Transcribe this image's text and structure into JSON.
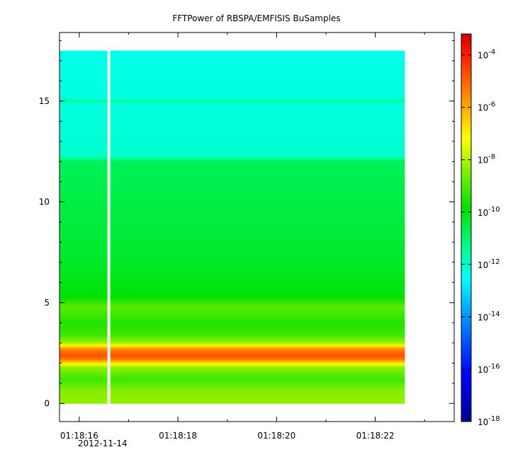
{
  "chart_data": {
    "type": "heatmap",
    "title": "FFTPower of RBSPA/EMFISIS  BuSamples",
    "xlabel": "",
    "ylabel": "",
    "x_ticks": [
      {
        "value": 16,
        "label": "01:18:16"
      },
      {
        "value": 18,
        "label": "01:18:18"
      },
      {
        "value": 20,
        "label": "01:18:20"
      },
      {
        "value": 22,
        "label": "01:18:22"
      }
    ],
    "x_date_label": "2012-11-14",
    "xlim": [
      15.6,
      23.6
    ],
    "data_x_range": [
      15.6,
      22.6
    ],
    "gap_x": 16.6,
    "y_ticks": [
      0,
      5,
      10,
      15
    ],
    "ylim": [
      -0.9,
      18.4
    ],
    "data_y_range": [
      0,
      17.5
    ],
    "colorbar": {
      "scale": "log",
      "range_exp": [
        -18,
        -3.2
      ],
      "ticks": [
        {
          "exp": -4,
          "base": "10",
          "sup": "-4"
        },
        {
          "exp": -6,
          "base": "10",
          "sup": "-6"
        },
        {
          "exp": -8,
          "base": "10",
          "sup": "-8"
        },
        {
          "exp": -10,
          "base": "10",
          "sup": "-10"
        },
        {
          "exp": -12,
          "base": "10",
          "sup": "-12"
        },
        {
          "exp": -14,
          "base": "10",
          "sup": "-14"
        },
        {
          "exp": -16,
          "base": "10",
          "sup": "-16"
        },
        {
          "exp": -18,
          "base": "10",
          "sup": "-18"
        }
      ]
    },
    "power_profile": [
      {
        "f": 0.0,
        "log_power": -8.3
      },
      {
        "f": 0.6,
        "log_power": -8.4
      },
      {
        "f": 1.2,
        "log_power": -9.2
      },
      {
        "f": 1.8,
        "log_power": -8.3
      },
      {
        "f": 2.2,
        "log_power": -5.2
      },
      {
        "f": 2.4,
        "log_power": -4.7
      },
      {
        "f": 2.7,
        "log_power": -5.6
      },
      {
        "f": 3.0,
        "log_power": -8.2
      },
      {
        "f": 3.4,
        "log_power": -9.2
      },
      {
        "f": 4.0,
        "log_power": -9.5
      },
      {
        "f": 4.8,
        "log_power": -8.9
      },
      {
        "f": 5.3,
        "log_power": -9.9
      },
      {
        "f": 7.0,
        "log_power": -10.3
      },
      {
        "f": 10.0,
        "log_power": -10.6
      },
      {
        "f": 12.0,
        "log_power": -10.8
      },
      {
        "f": 12.3,
        "log_power": -12.0
      },
      {
        "f": 14.9,
        "log_power": -12.2
      },
      {
        "f": 15.0,
        "log_power": -11.2
      },
      {
        "f": 15.1,
        "log_power": -12.2
      },
      {
        "f": 17.5,
        "log_power": -12.3
      }
    ],
    "grid": false,
    "legend": "none"
  }
}
